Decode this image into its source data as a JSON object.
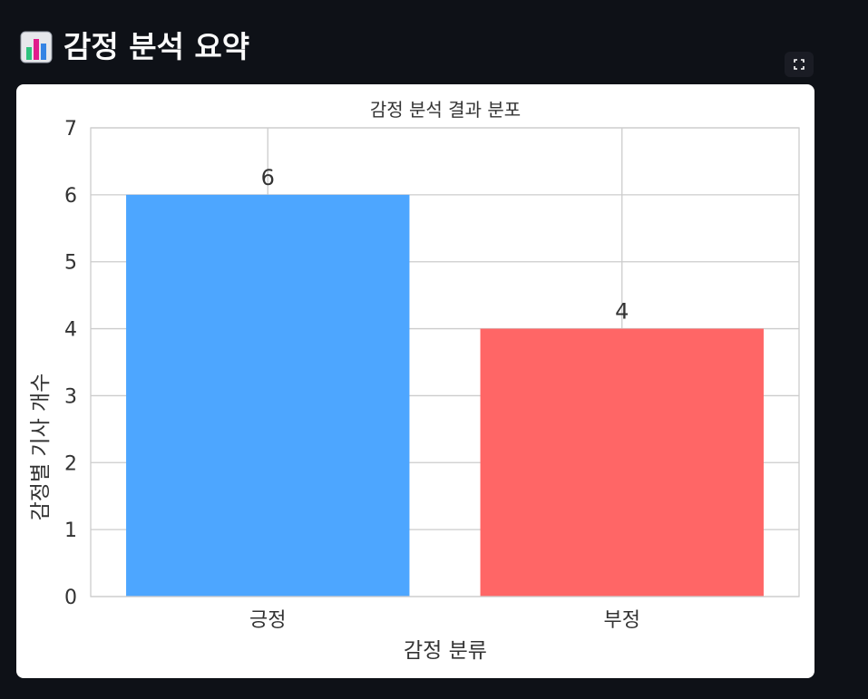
{
  "header": {
    "title": "감정 분석 요약",
    "icon": "bar-chart-emoji-icon"
  },
  "toolbar": {
    "fullscreen_icon": "fullscreen-icon"
  },
  "colors": {
    "page_background": "#0e1117",
    "positive_bar": "#4da6ff",
    "negative_bar": "#ff6666"
  },
  "chart_data": {
    "type": "bar",
    "title": "감정 분석 결과 분포",
    "xlabel": "감정 분류",
    "ylabel": "감정별 기사 개수",
    "categories": [
      "긍정",
      "부정"
    ],
    "values": [
      6,
      4
    ],
    "data_labels": [
      "6",
      "4"
    ],
    "bar_colors": [
      "#4da6ff",
      "#ff6666"
    ],
    "ylim": [
      0,
      7
    ],
    "yticks": [
      "0",
      "1",
      "2",
      "3",
      "4",
      "5",
      "6",
      "7"
    ],
    "grid": true
  }
}
